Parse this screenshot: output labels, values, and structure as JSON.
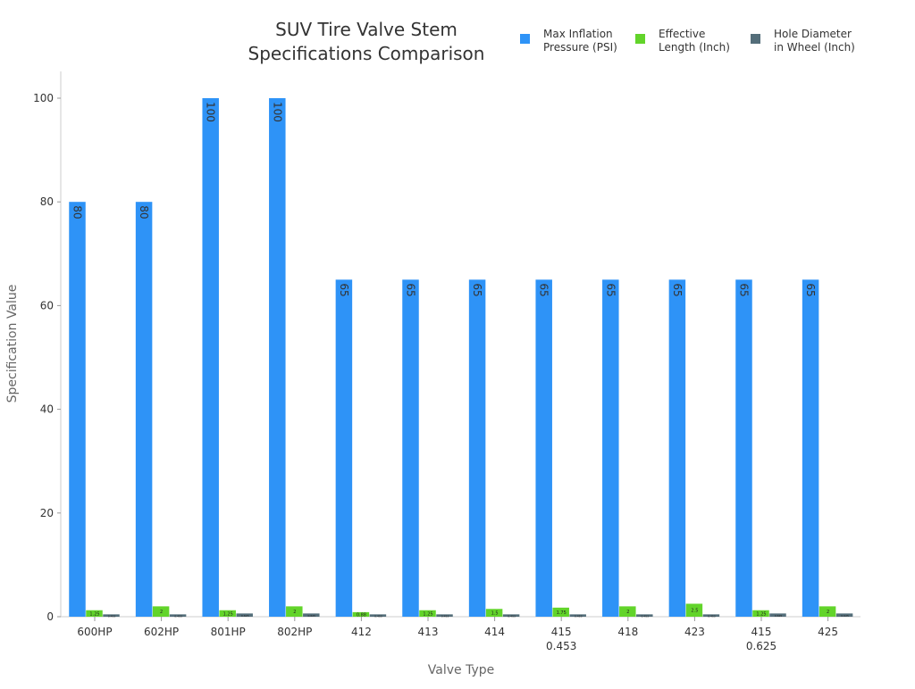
{
  "chart_data": {
    "type": "bar",
    "title": "SUV Tire Valve Stem\nSpecifications Comparison",
    "xlabel": "Valve Type",
    "ylabel": "Specification Value",
    "ylim": [
      0,
      105
    ],
    "yticks": [
      0,
      20,
      40,
      60,
      80,
      100
    ],
    "grid": false,
    "legend_position": "top-right",
    "categories": [
      "600HP",
      "602HP",
      "801HP",
      "802HP",
      "412",
      "413",
      "414",
      "415\n0.453",
      "418",
      "423",
      "415\n0.625",
      "425"
    ],
    "series": [
      {
        "name": "Max Inflation\nPressure (PSI)",
        "color": "#2e93f7",
        "values": [
          80,
          80,
          100,
          100,
          65,
          65,
          65,
          65,
          65,
          65,
          65,
          65
        ]
      },
      {
        "name": "Effective\nLength (Inch)",
        "color": "#62d42a",
        "values": [
          1.25,
          2.0,
          1.25,
          2.0,
          0.88,
          1.25,
          1.5,
          1.75,
          2.0,
          2.5,
          1.25,
          2.0
        ]
      },
      {
        "name": "Hole Diameter\nin Wheel (Inch)",
        "color": "#546e7a",
        "values": [
          0.453,
          0.453,
          0.625,
          0.625,
          0.453,
          0.453,
          0.453,
          0.453,
          0.453,
          0.453,
          0.625,
          0.625
        ]
      }
    ]
  }
}
